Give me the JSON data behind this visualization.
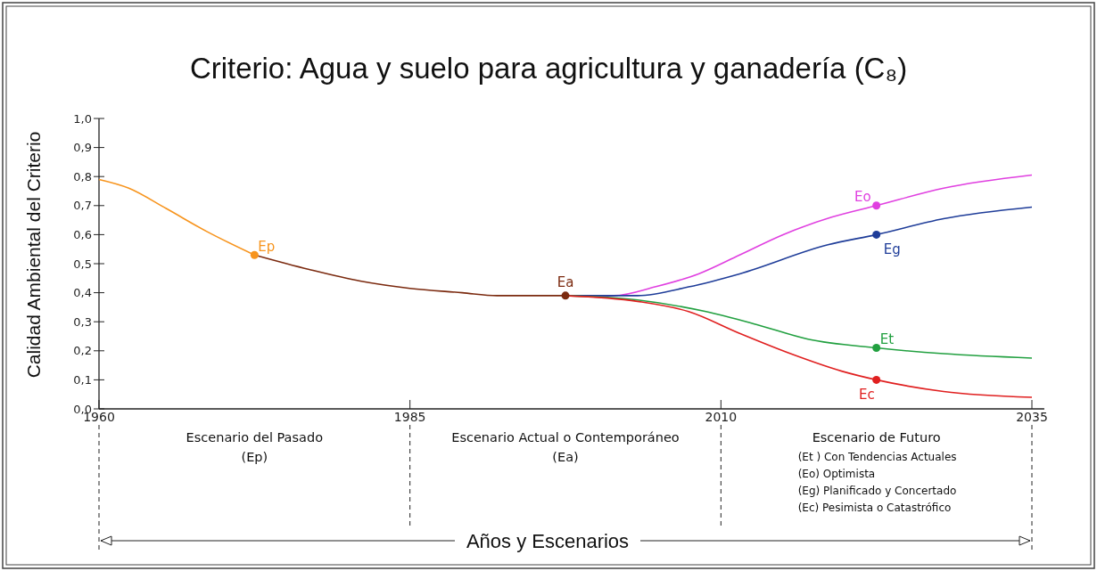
{
  "chart_data": {
    "type": "line",
    "title": "Criterio: Agua y suelo para agricultura y ganadería (C₈)",
    "ylabel": "Calidad Ambiental del Criterio",
    "xlim": [
      1960,
      2036
    ],
    "xticks": [
      1960,
      1985,
      2010,
      2035
    ],
    "ylim": [
      0,
      1
    ],
    "yticks": [
      {
        "value": 0,
        "label": "0,0"
      },
      {
        "value": 0.1,
        "label": "0,1"
      },
      {
        "value": 0.2,
        "label": "0,2"
      },
      {
        "value": 0.3,
        "label": "0,3"
      },
      {
        "value": 0.4,
        "label": "0,4"
      },
      {
        "value": 0.5,
        "label": "0,5"
      },
      {
        "value": 0.6,
        "label": "0,6"
      },
      {
        "value": 0.7,
        "label": "0,7"
      },
      {
        "value": 0.8,
        "label": "0,8"
      },
      {
        "value": 0.9,
        "label": "0,9"
      },
      {
        "value": 1,
        "label": "1,0"
      }
    ],
    "grid": false,
    "marker": "none",
    "series": [
      {
        "color": "#f7941d",
        "x": [
          1960,
          1962.4,
          1965.4,
          1968.7,
          1972.5
        ],
        "values": [
          0.79,
          0.76,
          0.69,
          0.61,
          0.53
        ]
      },
      {
        "color": "#7b2a0f",
        "x": [
          1972.5,
          1976.9,
          1981,
          1985,
          1989.2,
          1992,
          1997.5
        ],
        "values": [
          0.53,
          0.48,
          0.44,
          0.415,
          0.4,
          0.39,
          0.39
        ]
      },
      {
        "color": "#e040e0",
        "x": [
          1997.5,
          2001.4,
          2004.7,
          2008.2,
          2011.5,
          2015,
          2018.9,
          2022.5,
          2027.9,
          2035
        ],
        "values": [
          0.39,
          0.39,
          0.42,
          0.465,
          0.53,
          0.6,
          0.66,
          0.7,
          0.76,
          0.805
        ]
      },
      {
        "color": "#1f3d99",
        "x": [
          1997.5,
          2003.3,
          2007.4,
          2011.5,
          2018.6,
          2022.5,
          2027.9,
          2035
        ],
        "values": [
          0.39,
          0.39,
          0.42,
          0.465,
          0.565,
          0.6,
          0.655,
          0.695
        ]
      },
      {
        "color": "#22a040",
        "x": [
          1997.5,
          2003.3,
          2008.8,
          2012.9,
          2017,
          2022.5,
          2027.9,
          2035
        ],
        "values": [
          0.39,
          0.375,
          0.335,
          0.29,
          0.24,
          0.21,
          0.19,
          0.175
        ]
      },
      {
        "color": "#e02020",
        "x": [
          1997.5,
          2003.3,
          2007.4,
          2011.5,
          2015.6,
          2019.7,
          2022.5,
          2027.9,
          2035
        ],
        "values": [
          0.39,
          0.37,
          0.335,
          0.26,
          0.19,
          0.13,
          0.1,
          0.06,
          0.04
        ]
      },
      {
        "type": "scatter",
        "marker": "circle",
        "name": "Ep",
        "color": "#f7941d",
        "x": [
          1972.5
        ],
        "values": [
          0.53
        ]
      },
      {
        "type": "scatter",
        "marker": "circle",
        "name": "Ea",
        "color": "#7b2a0f",
        "x": [
          1997.5
        ],
        "values": [
          0.39
        ]
      },
      {
        "type": "scatter",
        "marker": "circle",
        "name": "Eo",
        "color": "#e040e0",
        "x": [
          2022.5
        ],
        "values": [
          0.7
        ]
      },
      {
        "type": "scatter",
        "marker": "circle",
        "name": "Eg",
        "color": "#1f3d99",
        "x": [
          2022.5
        ],
        "values": [
          0.6
        ]
      },
      {
        "type": "scatter",
        "marker": "circle",
        "name": "Et",
        "color": "#22a040",
        "x": [
          2022.5
        ],
        "values": [
          0.21
        ]
      },
      {
        "type": "scatter",
        "marker": "circle",
        "name": "Ec",
        "color": "#e02020",
        "x": [
          2022.5
        ],
        "values": [
          0.1
        ]
      }
    ],
    "annotations": [
      "Escenario del Pasado\n(Ep)",
      "Escenario Actual o Contemporáneo\n(Ea)",
      "Escenario de Futuro\n(Et ) Con Tendencias Actuales\n(Eo) Optimista\n(Eg) Planificado y Concertado\n(Ec) Pesimista o Catastrófico",
      "Años y Escenarios"
    ]
  }
}
